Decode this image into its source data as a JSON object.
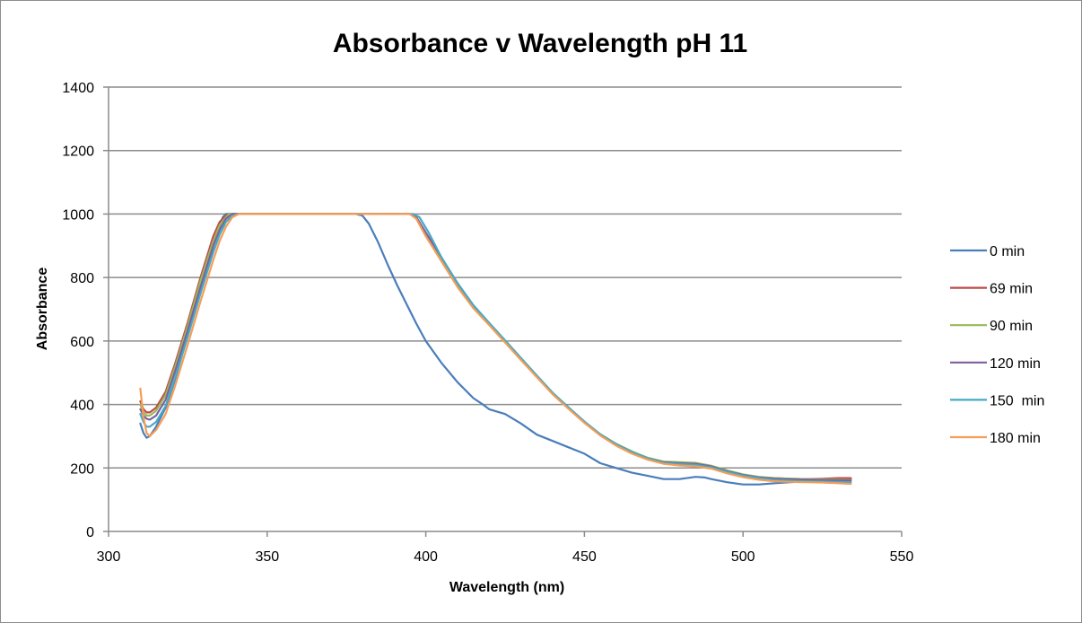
{
  "chart_data": {
    "type": "line",
    "title": "Absorbance v Wavelength pH 11",
    "xlabel": "Wavelength (nm)",
    "ylabel": "Absorbance",
    "xlim": [
      300,
      550
    ],
    "ylim": [
      0,
      1400
    ],
    "xticks": [
      300,
      350,
      400,
      450,
      500,
      550
    ],
    "yticks": [
      0,
      200,
      400,
      600,
      800,
      1000,
      1200,
      1400
    ],
    "xtick_labels": [
      "300",
      "350",
      "400",
      "450",
      "500",
      "550"
    ],
    "ytick_labels": [
      "0",
      "200",
      "400",
      "600",
      "800",
      "1000",
      "1200",
      "1400"
    ],
    "grid": "horizontal",
    "legend_position": "right",
    "series": [
      {
        "name": "0 min",
        "color": "#4a7ebb",
        "x": [
          310,
          311,
          312,
          313,
          315,
          318,
          321,
          325,
          329,
          333,
          335,
          336,
          337,
          340,
          360,
          378,
          380,
          382,
          385,
          388,
          391,
          394,
          397,
          400,
          405,
          410,
          415,
          418,
          420,
          425,
          430,
          435,
          440,
          445,
          450,
          455,
          460,
          465,
          470,
          475,
          480,
          485,
          488,
          490,
          495,
          500,
          505,
          510,
          515,
          520,
          525,
          530,
          534
        ],
        "values": [
          340,
          310,
          295,
          300,
          330,
          390,
          480,
          620,
          760,
          900,
          960,
          990,
          1000,
          1000,
          1000,
          1000,
          995,
          970,
          910,
          840,
          775,
          715,
          655,
          600,
          530,
          470,
          420,
          400,
          385,
          370,
          340,
          305,
          285,
          265,
          245,
          215,
          200,
          185,
          175,
          165,
          165,
          172,
          170,
          165,
          155,
          148,
          148,
          152,
          155,
          158,
          158,
          160,
          165
        ]
      },
      {
        "name": "69 min",
        "color": "#be4b48",
        "x": [
          310,
          311,
          312,
          313,
          315,
          318,
          321,
          325,
          329,
          333,
          335,
          337,
          338,
          340,
          360,
          380,
          393,
          395,
          397,
          400,
          405,
          410,
          415,
          420,
          425,
          430,
          435,
          440,
          445,
          450,
          455,
          460,
          465,
          470,
          475,
          480,
          485,
          490,
          495,
          500,
          505,
          510,
          515,
          520,
          525,
          530,
          534
        ],
        "values": [
          410,
          385,
          375,
          375,
          390,
          440,
          530,
          660,
          800,
          930,
          975,
          995,
          1000,
          1000,
          1000,
          1000,
          1000,
          1000,
          990,
          940,
          860,
          780,
          710,
          655,
          600,
          545,
          490,
          435,
          390,
          345,
          305,
          275,
          250,
          230,
          218,
          215,
          213,
          205,
          190,
          178,
          170,
          168,
          166,
          165,
          166,
          168,
          168
        ]
      },
      {
        "name": "90 min",
        "color": "#98b954",
        "x": [
          310,
          311,
          312,
          313,
          315,
          318,
          321,
          325,
          329,
          333,
          335,
          337,
          338,
          340,
          360,
          380,
          393,
          395,
          397,
          400,
          405,
          410,
          415,
          420,
          425,
          430,
          435,
          440,
          445,
          450,
          455,
          460,
          465,
          470,
          475,
          480,
          485,
          490,
          495,
          500,
          505,
          510,
          515,
          520,
          525,
          530,
          534
        ],
        "values": [
          400,
          375,
          365,
          365,
          380,
          430,
          520,
          650,
          790,
          915,
          965,
          990,
          1000,
          1000,
          1000,
          1000,
          1000,
          1000,
          988,
          938,
          858,
          778,
          710,
          655,
          600,
          545,
          490,
          436,
          390,
          346,
          306,
          276,
          252,
          232,
          220,
          218,
          216,
          207,
          192,
          180,
          172,
          168,
          166,
          165,
          164,
          163,
          162
        ]
      },
      {
        "name": "120 min",
        "color": "#7d60a0",
        "x": [
          310,
          311,
          312,
          313,
          315,
          318,
          321,
          325,
          329,
          333,
          335,
          337,
          339,
          341,
          360,
          380,
          393,
          395,
          397,
          400,
          405,
          410,
          415,
          420,
          425,
          430,
          435,
          440,
          445,
          450,
          455,
          460,
          465,
          470,
          475,
          480,
          485,
          490,
          495,
          500,
          505,
          510,
          515,
          520,
          525,
          530,
          534
        ],
        "values": [
          385,
          365,
          355,
          352,
          365,
          415,
          505,
          635,
          770,
          900,
          950,
          985,
          1000,
          1000,
          1000,
          1000,
          1000,
          1000,
          990,
          942,
          862,
          782,
          712,
          656,
          600,
          545,
          490,
          436,
          390,
          346,
          306,
          275,
          250,
          230,
          218,
          215,
          213,
          205,
          190,
          178,
          170,
          166,
          164,
          163,
          162,
          161,
          160
        ]
      },
      {
        "name": "150  min",
        "color": "#46aac5",
        "x": [
          310,
          311,
          312,
          313,
          315,
          318,
          321,
          325,
          329,
          333,
          335,
          337,
          339,
          341,
          360,
          380,
          394,
          396,
          398,
          401,
          405,
          410,
          415,
          420,
          425,
          430,
          435,
          440,
          445,
          450,
          455,
          460,
          465,
          470,
          475,
          480,
          485,
          490,
          495,
          500,
          505,
          510,
          515,
          520,
          525,
          530,
          534
        ],
        "values": [
          370,
          345,
          330,
          330,
          345,
          395,
          485,
          615,
          750,
          880,
          935,
          975,
          995,
          1000,
          1000,
          1000,
          1000,
          1000,
          990,
          940,
          862,
          782,
          713,
          657,
          602,
          546,
          491,
          437,
          391,
          346,
          306,
          275,
          250,
          230,
          216,
          212,
          210,
          202,
          188,
          176,
          168,
          162,
          160,
          158,
          157,
          156,
          155
        ]
      },
      {
        "name": "180 min",
        "color": "#f59d56",
        "x": [
          310,
          311,
          312,
          313,
          315,
          318,
          321,
          325,
          329,
          333,
          335,
          337,
          339,
          341,
          342,
          360,
          380,
          393,
          395,
          397,
          400,
          405,
          410,
          415,
          420,
          425,
          430,
          435,
          440,
          445,
          450,
          455,
          460,
          465,
          470,
          475,
          480,
          485,
          490,
          495,
          500,
          505,
          510,
          515,
          520,
          525,
          530,
          534
        ],
        "values": [
          450,
          360,
          310,
          300,
          320,
          370,
          460,
          590,
          725,
          855,
          915,
          960,
          990,
          1000,
          1000,
          1000,
          1000,
          1000,
          1000,
          985,
          930,
          850,
          770,
          703,
          650,
          595,
          540,
          486,
          432,
          386,
          342,
          302,
          270,
          245,
          226,
          213,
          208,
          205,
          198,
          183,
          171,
          163,
          158,
          156,
          155,
          154,
          152,
          150
        ]
      }
    ]
  }
}
